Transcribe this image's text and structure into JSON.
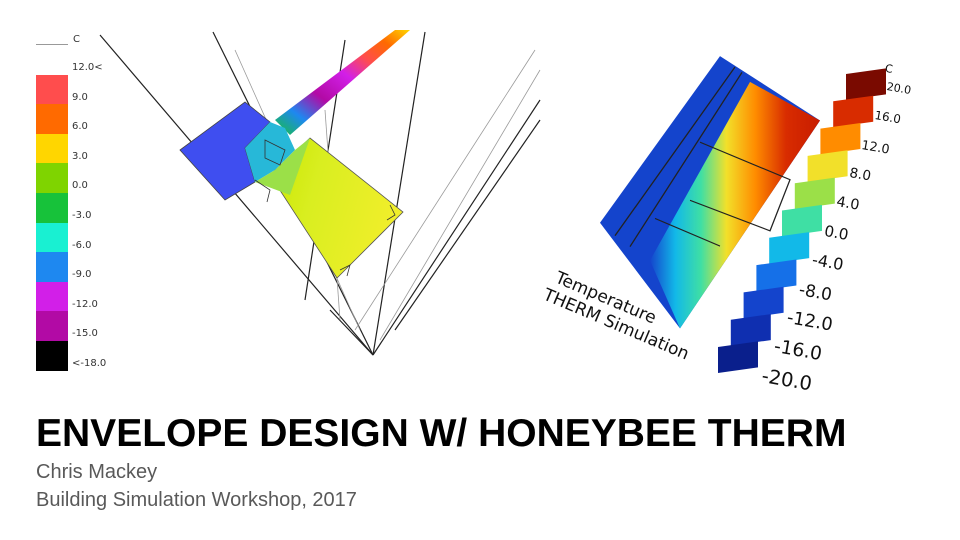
{
  "slide": {
    "title": "ENVELOPE DESIGN W/ HONEYBEE THERM",
    "author": "Chris Mackey",
    "event": "Building Simulation Workshop, 2017"
  },
  "left_legend": {
    "unit": "C",
    "items": [
      {
        "label": "12.0<",
        "color": "#ffffff"
      },
      {
        "label": "9.0",
        "color": "#ff4d4d"
      },
      {
        "label": "6.0",
        "color": "#ff6a00"
      },
      {
        "label": "3.0",
        "color": "#ffd600"
      },
      {
        "label": "0.0",
        "color": "#7fd400"
      },
      {
        "label": "-3.0",
        "color": "#17c23a"
      },
      {
        "label": "-6.0",
        "color": "#19f0d2"
      },
      {
        "label": "-9.0",
        "color": "#1e88f0"
      },
      {
        "label": "-12.0",
        "color": "#d21fe8"
      },
      {
        "label": "-15.0",
        "color": "#b20aa5"
      },
      {
        "label": "<-18.0",
        "color": "#000000"
      }
    ]
  },
  "right_legend": {
    "unit": "C",
    "items": [
      {
        "label": "20.0",
        "color": "#7a0a00"
      },
      {
        "label": "16.0",
        "color": "#d82c00"
      },
      {
        "label": "12.0",
        "color": "#ff8c00"
      },
      {
        "label": "8.0",
        "color": "#f2e02a"
      },
      {
        "label": "4.0",
        "color": "#9be048"
      },
      {
        "label": "0.0",
        "color": "#3fdfa4"
      },
      {
        "label": "-4.0",
        "color": "#12b9e8"
      },
      {
        "label": "-8.0",
        "color": "#1570e8"
      },
      {
        "label": "-12.0",
        "color": "#1444cc"
      },
      {
        "label": "-16.0",
        "color": "#0f2fb0"
      },
      {
        "label": "-20.0",
        "color": "#0a1f8c"
      }
    ]
  },
  "sim_label": {
    "line1": "Temperature",
    "line2": "THERM Simulation"
  }
}
